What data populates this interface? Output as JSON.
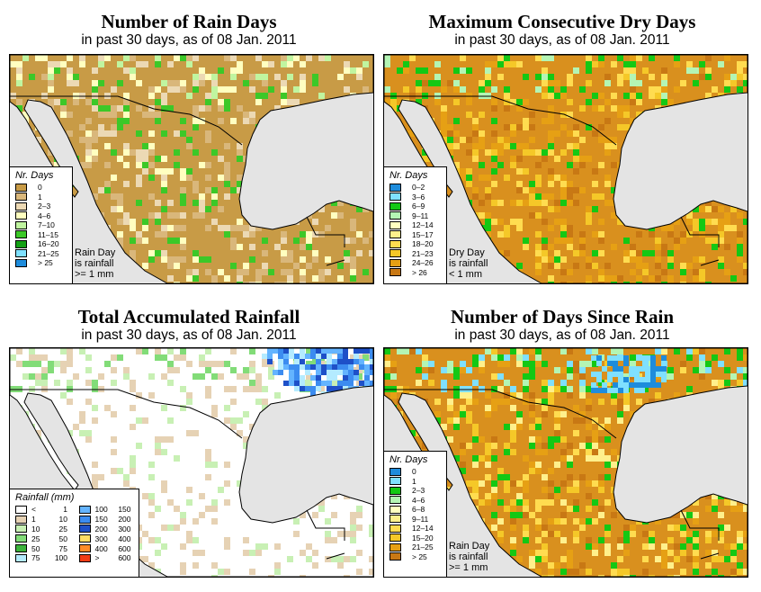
{
  "panels": [
    {
      "title": "Number of Rain Days",
      "subtitle": "in past 30 days, as of  08 Jan. 2011",
      "legend_title": "Nr. Days",
      "legend": [
        {
          "label": "0",
          "color": "#c89b46"
        },
        {
          "label": "1",
          "color": "#d9b77b"
        },
        {
          "label": "2–3",
          "color": "#ecd9b4"
        },
        {
          "label": "4–6",
          "color": "#ffffc0"
        },
        {
          "label": "7–10",
          "color": "#c0f5a0"
        },
        {
          "label": "11–15",
          "color": "#3cc828"
        },
        {
          "label": "16–20",
          "color": "#14a014"
        },
        {
          "label": "21–25",
          "color": "#7fe0ff"
        },
        {
          "label": "> 25",
          "color": "#1e8cdc"
        }
      ],
      "note": [
        "Rain Day",
        "is rainfall",
        ">= 1 mm"
      ]
    },
    {
      "title": "Maximum Consecutive Dry Days",
      "subtitle": "in past 30 days, as of  08 Jan. 2011",
      "legend_title": "Nr. Days",
      "legend": [
        {
          "label": "0–2",
          "color": "#1e8cdc"
        },
        {
          "label": "3–6",
          "color": "#7fe0ff"
        },
        {
          "label": "6–9",
          "color": "#14c814"
        },
        {
          "label": "9–11",
          "color": "#b4f5b4"
        },
        {
          "label": "12–14",
          "color": "#ffffc0"
        },
        {
          "label": "15–17",
          "color": "#fff08c"
        },
        {
          "label": "18–20",
          "color": "#ffdc50"
        },
        {
          "label": "21–23",
          "color": "#f5c828"
        },
        {
          "label": "24–26",
          "color": "#e6a014"
        },
        {
          "label": "> 26",
          "color": "#c87814"
        }
      ],
      "note": [
        "Dry Day",
        "is rainfall",
        "< 1 mm"
      ]
    },
    {
      "title": "Total Accumulated Rainfall",
      "subtitle": "in past 30 days, as of  08 Jan. 2011",
      "legend_title": "Rainfall (mm)",
      "legend": [
        {
          "lo": "<",
          "hi": "1",
          "color": "#ffffff"
        },
        {
          "lo": "100",
          "hi": "150",
          "color": "#64b4ff"
        },
        {
          "lo": "1",
          "hi": "10",
          "color": "#e6d2b4"
        },
        {
          "lo": "150",
          "hi": "200",
          "color": "#3c8cf0"
        },
        {
          "lo": "10",
          "hi": "25",
          "color": "#c8f0b4"
        },
        {
          "lo": "200",
          "hi": "300",
          "color": "#1e50c8"
        },
        {
          "lo": "25",
          "hi": "50",
          "color": "#82dc78"
        },
        {
          "lo": "300",
          "hi": "400",
          "color": "#ffdc64"
        },
        {
          "lo": "50",
          "hi": "75",
          "color": "#3cb43c"
        },
        {
          "lo": "400",
          "hi": "600",
          "color": "#ff8c28"
        },
        {
          "lo": "75",
          "hi": "100",
          "color": "#b4ebff"
        },
        {
          "lo": ">",
          "hi": "600",
          "color": "#f03c14"
        }
      ],
      "note": []
    },
    {
      "title": "Number of Days Since Rain",
      "subtitle": "in past 30 days, as of  08 Jan. 2011",
      "legend_title": "Nr. Days",
      "legend": [
        {
          "label": "0",
          "color": "#1e8cdc"
        },
        {
          "label": "1",
          "color": "#7fe0ff"
        },
        {
          "label": "2–3",
          "color": "#14c814"
        },
        {
          "label": "4–6",
          "color": "#b4f5b4"
        },
        {
          "label": "6–8",
          "color": "#ffffc0"
        },
        {
          "label": "9–11",
          "color": "#fff08c"
        },
        {
          "label": "12–14",
          "color": "#ffdc50"
        },
        {
          "label": "15–20",
          "color": "#f5c828"
        },
        {
          "label": "21–25",
          "color": "#e6a014"
        },
        {
          "label": "> 25",
          "color": "#c87814"
        }
      ],
      "note": [
        "Rain Day",
        "is rainfall",
        ">= 1 mm"
      ]
    }
  ]
}
